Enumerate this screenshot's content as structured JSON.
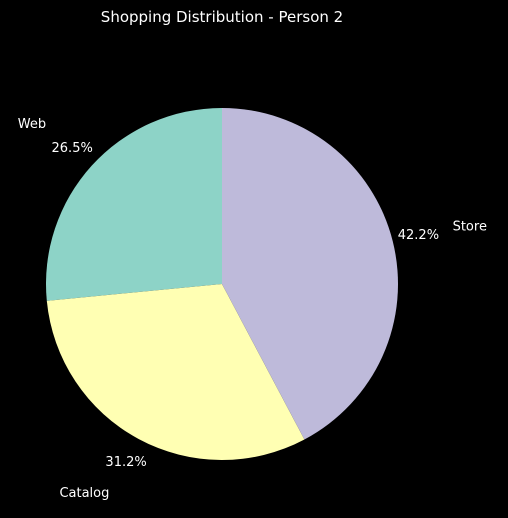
{
  "chart_data": {
    "type": "pie",
    "title": "Shopping Distribution - Person 2",
    "slices": [
      {
        "label": "Web",
        "value": 26.5,
        "pct_label": "26.5%",
        "color": "#8dd3c7"
      },
      {
        "label": "Catalog",
        "value": 31.2,
        "pct_label": "31.2%",
        "color": "#ffffb3"
      },
      {
        "label": "Store",
        "value": 42.2,
        "pct_label": "42.2%",
        "color": "#bebada"
      }
    ],
    "start_angle_deg": 90,
    "direction": "counterclockwise",
    "background": "#000000",
    "text_color": "#ffffff"
  }
}
